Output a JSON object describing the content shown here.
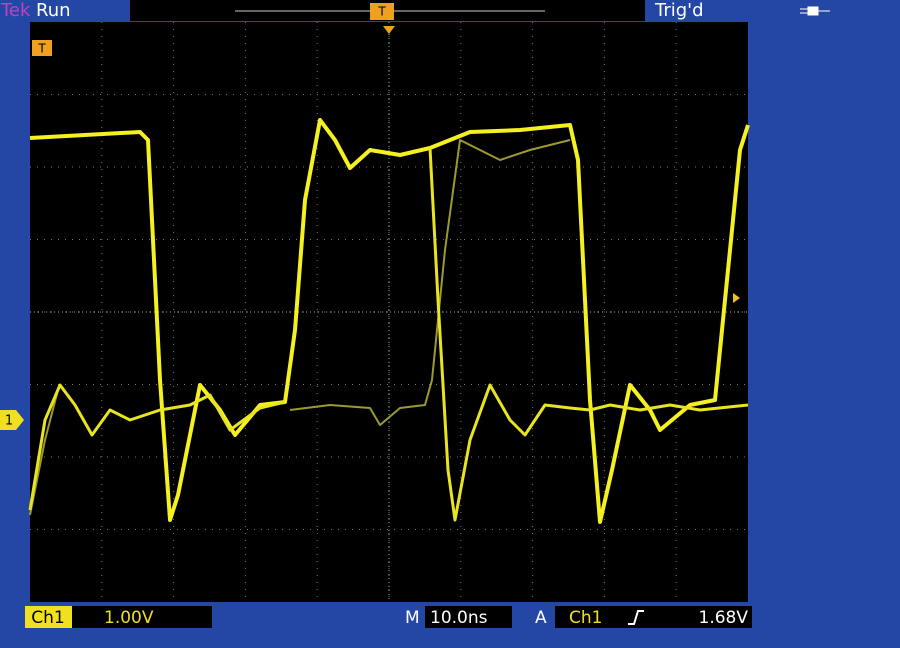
{
  "header": {
    "brand": "Tek",
    "status": "Run",
    "trigger_marker": "T",
    "trigger_state": "Trig'd"
  },
  "screen": {
    "trigger_level_marker": "T",
    "channel_marker": "1"
  },
  "footer": {
    "channel": "Ch1",
    "scale": "1.00V",
    "timebase_prefix": "M",
    "timebase": "10.0ns",
    "trigger_mode": "A",
    "trigger_source": "Ch1",
    "trigger_level": "1.68V"
  }
}
